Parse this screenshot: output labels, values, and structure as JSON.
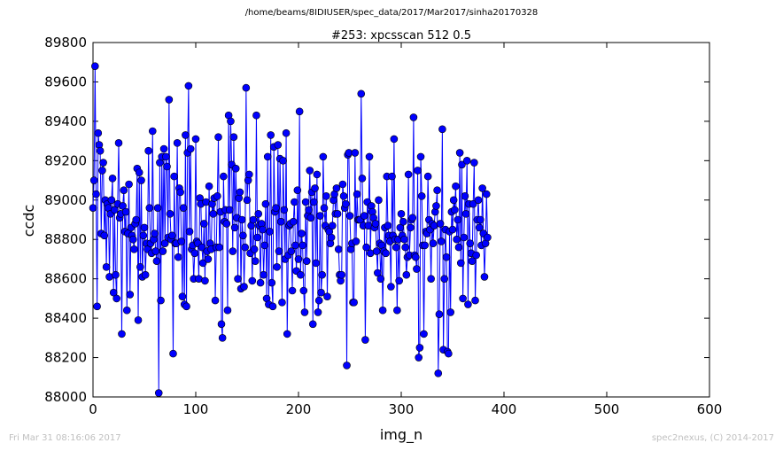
{
  "figure": {
    "suptitle": "/home/beams/8IDIUSER/spec_data/2017/Mar2017/sinha20170328",
    "footer_left": "Fri Mar 31 08:16:06 2017",
    "footer_right": "spec2nexus, (C) 2014-2017"
  },
  "chart_data": {
    "type": "line",
    "title": "#253: xpcsscan 512 0.5",
    "xlabel": "img_n",
    "ylabel": "ccdc",
    "xlim": [
      0,
      600
    ],
    "ylim": [
      88000,
      89800
    ],
    "xticks": [
      0,
      100,
      200,
      300,
      400,
      500,
      600
    ],
    "yticks": [
      88000,
      88200,
      88400,
      88600,
      88800,
      89000,
      89200,
      89400,
      89600,
      89800
    ],
    "grid": false,
    "legend": "none",
    "marker": "circle",
    "color": "#0000ff",
    "series": [
      {
        "x_start": 0,
        "x_step": 1,
        "values": [
          88960,
          89100,
          89680,
          89030,
          88460,
          89340,
          89280,
          89250,
          88830,
          89150,
          89190,
          88820,
          89000,
          88660,
          88980,
          88960,
          88610,
          88930,
          89000,
          89110,
          88530,
          88950,
          88620,
          88500,
          88980,
          89290,
          88910,
          88930,
          88320,
          88970,
          89050,
          88840,
          88940,
          88440,
          88830,
          89080,
          88520,
          88860,
          88820,
          88800,
          88750,
          88880,
          88900,
          89160,
          88390,
          89140,
          88660,
          89100,
          88610,
          88820,
          88860,
          88620,
          88780,
          88750,
          89250,
          88960,
          88780,
          88730,
          89350,
          88800,
          88830,
          88740,
          88690,
          88960,
          88020,
          89190,
          88490,
          89220,
          88740,
          89260,
          88780,
          89220,
          89170,
          88810,
          89510,
          88930,
          88800,
          88820,
          88220,
          89120,
          88780,
          88780,
          89290,
          88710,
          89060,
          89040,
          88790,
          88510,
          88960,
          88470,
          89330,
          88460,
          89240,
          89580,
          88840,
          89260,
          88750,
          88770,
          88600,
          88730,
          89310,
          88790,
          88780,
          88600,
          89010,
          88980,
          88760,
          88680,
          88880,
          88590,
          88990,
          88740,
          88700,
          89070,
          88780,
          88750,
          88980,
          88930,
          89010,
          88490,
          88760,
          89020,
          89320,
          88760,
          88940,
          88370,
          88300,
          89120,
          88890,
          88950,
          88880,
          88440,
          89430,
          88950,
          89400,
          89180,
          88740,
          89320,
          88860,
          89160,
          88910,
          88600,
          89010,
          89040,
          88550,
          88900,
          88820,
          88560,
          88760,
          89570,
          89000,
          89100,
          89130,
          88730,
          88870,
          88590,
          88900,
          88750,
          88690,
          89430,
          88810,
          88930,
          88870,
          88580,
          88880,
          88850,
          88620,
          88770,
          88980,
          88500,
          89220,
          88470,
          88840,
          89330,
          88580,
          88460,
          89270,
          88940,
          88960,
          88660,
          89280,
          88740,
          89210,
          88890,
          88480,
          89200,
          88950,
          88700,
          89340,
          88320,
          88720,
          88870,
          88880,
          88740,
          88540,
          88890,
          88990,
          88770,
          88640,
          89050,
          88700,
          89450,
          88620,
          88830,
          88770,
          88540,
          88430,
          88990,
          88690,
          88920,
          88950,
          89150,
          88910,
          89040,
          88370,
          88990,
          89060,
          88680,
          89130,
          88430,
          88490,
          88920,
          88530,
          88620,
          89220,
          88960,
          88870,
          89020,
          88510,
          88850,
          88840,
          88780,
          88810,
          88870,
          89000,
          89030,
          88930,
          89060,
          88930,
          88750,
          88620,
          88590,
          88620,
          89080,
          89020,
          88960,
          88980,
          88160,
          89230,
          89240,
          88920,
          88750,
          88780,
          88480,
          88480,
          89240,
          88790,
          89030,
          88900,
          88900,
          88900,
          89540,
          89110,
          88870,
          88920,
          88290,
          88760,
          88990,
          88870,
          89220,
          88730,
          88970,
          88940,
          88910,
          88860,
          88880,
          88740,
          88630,
          89000,
          88780,
          88600,
          88770,
          88440,
          88740,
          88860,
          88730,
          89120,
          88870,
          88820,
          88790,
          88560,
          89120,
          88820,
          89310,
          88800,
          88760,
          88440,
          88800,
          88590,
          88860,
          88930,
          88820,
          88890,
          88800,
          88760,
          88620,
          88710,
          89130,
          88720,
          88860,
          88900,
          88910,
          89420,
          88720,
          88710,
          88650,
          89150,
          88200,
          88250,
          89220,
          89020,
          88770,
          88320,
          88770,
          88840,
          88830,
          89120,
          88900,
          88850,
          88600,
          88880,
          88780,
          88870,
          88940,
          88970,
          89050,
          88120,
          88420,
          88880,
          88790,
          89360,
          88240,
          88600,
          88850,
          88710,
          88230,
          88220,
          88840,
          88430,
          88940,
          88850,
          89000,
          88950,
          89070,
          88800,
          88900,
          88760,
          89240,
          88680,
          89180,
          88500,
          88810,
          89020,
          88930,
          89200,
          88470,
          88980,
          88780,
          88730,
          88690,
          88980,
          89190,
          88490,
          88720,
          88900,
          89000,
          88860,
          88900,
          88770,
          89060,
          88830,
          88610,
          88780,
          89030,
          88810
        ]
      }
    ]
  }
}
